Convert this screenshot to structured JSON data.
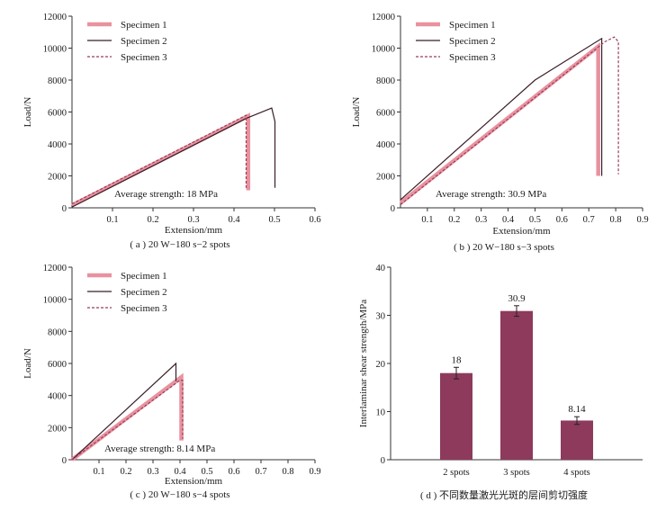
{
  "chart_data": [
    {
      "type": "line",
      "panel": "a",
      "caption": "( a ) 20 W−180 s−2 spots",
      "xlabel": "Extension/mm",
      "ylabel": "Load/N",
      "xlim": [
        0,
        0.6
      ],
      "ylim": [
        0,
        12000
      ],
      "xticks": [
        "0.1",
        "0.2",
        "0.3",
        "0.4",
        "0.5",
        "0.6"
      ],
      "yticks": [
        "0",
        "2000",
        "4000",
        "6000",
        "8000",
        "10000",
        "12000"
      ],
      "annotation": "Average strength: 18 MPa",
      "legend": {
        "placement": "top-left",
        "entries": [
          "Specimen 1",
          "Specimen 2",
          "Specimen 3"
        ]
      },
      "series": [
        {
          "name": "Specimen 1",
          "style": "thick",
          "color": "#e8929f",
          "points": [
            [
              0,
              150
            ],
            [
              0.435,
              5750
            ],
            [
              0.435,
              1100
            ]
          ]
        },
        {
          "name": "Specimen 2",
          "style": "solid",
          "color": "#3a1e28",
          "points": [
            [
              0,
              50
            ],
            [
              0.43,
              5600
            ],
            [
              0.493,
              6250
            ],
            [
              0.501,
              5400
            ],
            [
              0.501,
              1250
            ]
          ]
        },
        {
          "name": "Specimen 3",
          "style": "dashed",
          "color": "#9b3c5a",
          "points": [
            [
              0,
              250
            ],
            [
              0.43,
              5800
            ],
            [
              0.43,
              1250
            ]
          ]
        }
      ]
    },
    {
      "type": "line",
      "panel": "b",
      "caption": "( b ) 20 W−180 s−3 spots",
      "xlabel": "Extension/mm",
      "ylabel": "Load/N",
      "xlim": [
        0,
        0.9
      ],
      "ylim": [
        0,
        12000
      ],
      "xticks": [
        "0.1",
        "0.2",
        "0.3",
        "0.4",
        "0.5",
        "0.6",
        "0.7",
        "0.8",
        "0.9"
      ],
      "yticks": [
        "0",
        "2000",
        "4000",
        "6000",
        "8000",
        "10000",
        "12000"
      ],
      "annotation": "Average strength: 30.9 MPa",
      "legend": {
        "placement": "top-left",
        "entries": [
          "Specimen 1",
          "Specimen 2",
          "Specimen 3"
        ]
      },
      "series": [
        {
          "name": "Specimen 1",
          "style": "thick",
          "color": "#e8929f",
          "points": [
            [
              0,
              300
            ],
            [
              0.735,
              10100
            ],
            [
              0.735,
              2000
            ]
          ]
        },
        {
          "name": "Specimen 2",
          "style": "solid",
          "color": "#3a1e28",
          "points": [
            [
              0,
              500
            ],
            [
              0.5,
              8000
            ],
            [
              0.748,
              10600
            ],
            [
              0.748,
              2000
            ]
          ]
        },
        {
          "name": "Specimen 3",
          "style": "dashed",
          "color": "#9b3c5a",
          "points": [
            [
              0,
              200
            ],
            [
              0.76,
              10400
            ],
            [
              0.795,
              10700
            ],
            [
              0.81,
              10400
            ],
            [
              0.81,
              2100
            ]
          ]
        }
      ]
    },
    {
      "type": "line",
      "panel": "c",
      "caption": "( c ) 20 W−180 s−4 spots",
      "xlabel": "Extension/mm",
      "ylabel": "Load/N",
      "xlim": [
        0,
        0.9
      ],
      "ylim": [
        0,
        12000
      ],
      "xticks": [
        "0.1",
        "0.2",
        "0.3",
        "0.4",
        "0.5",
        "0.6",
        "0.7",
        "0.8",
        "0.9"
      ],
      "yticks": [
        "0",
        "2000",
        "4000",
        "6000",
        "8000",
        "10000",
        "12000"
      ],
      "annotation": "Average strength: 8.14 MPa",
      "legend": {
        "placement": "top-left",
        "entries": [
          "Specimen 1",
          "Specimen 2",
          "Specimen 3"
        ]
      },
      "series": [
        {
          "name": "Specimen 1",
          "style": "thick",
          "color": "#e8929f",
          "points": [
            [
              0,
              0
            ],
            [
              0.405,
              5150
            ],
            [
              0.405,
              1200
            ]
          ]
        },
        {
          "name": "Specimen 2",
          "style": "solid",
          "color": "#3a1e28",
          "points": [
            [
              0,
              0
            ],
            [
              0.385,
              6000
            ],
            [
              0.385,
              4900
            ]
          ]
        },
        {
          "name": "Specimen 3",
          "style": "dashed",
          "color": "#9b3c5a",
          "points": [
            [
              0,
              0
            ],
            [
              0.4,
              4950
            ],
            [
              0.41,
              4950
            ],
            [
              0.41,
              1300
            ]
          ]
        }
      ]
    },
    {
      "type": "bar",
      "panel": "d",
      "caption": "( d ) 不同数量激光光斑的层间剪切强度",
      "xlabel": "",
      "ylabel": "Interlaminar shear strength/MPa",
      "ylim": [
        0,
        40
      ],
      "yticks": [
        "0",
        "10",
        "20",
        "30",
        "40"
      ],
      "categories": [
        "2 spots",
        "3 spots",
        "4 spots"
      ],
      "values": [
        18,
        30.9,
        8.14
      ],
      "value_labels": [
        "18",
        "30.9",
        "8.14"
      ],
      "errors": [
        1.2,
        1.1,
        0.8
      ],
      "bar_color": "#8d3a5c"
    }
  ]
}
